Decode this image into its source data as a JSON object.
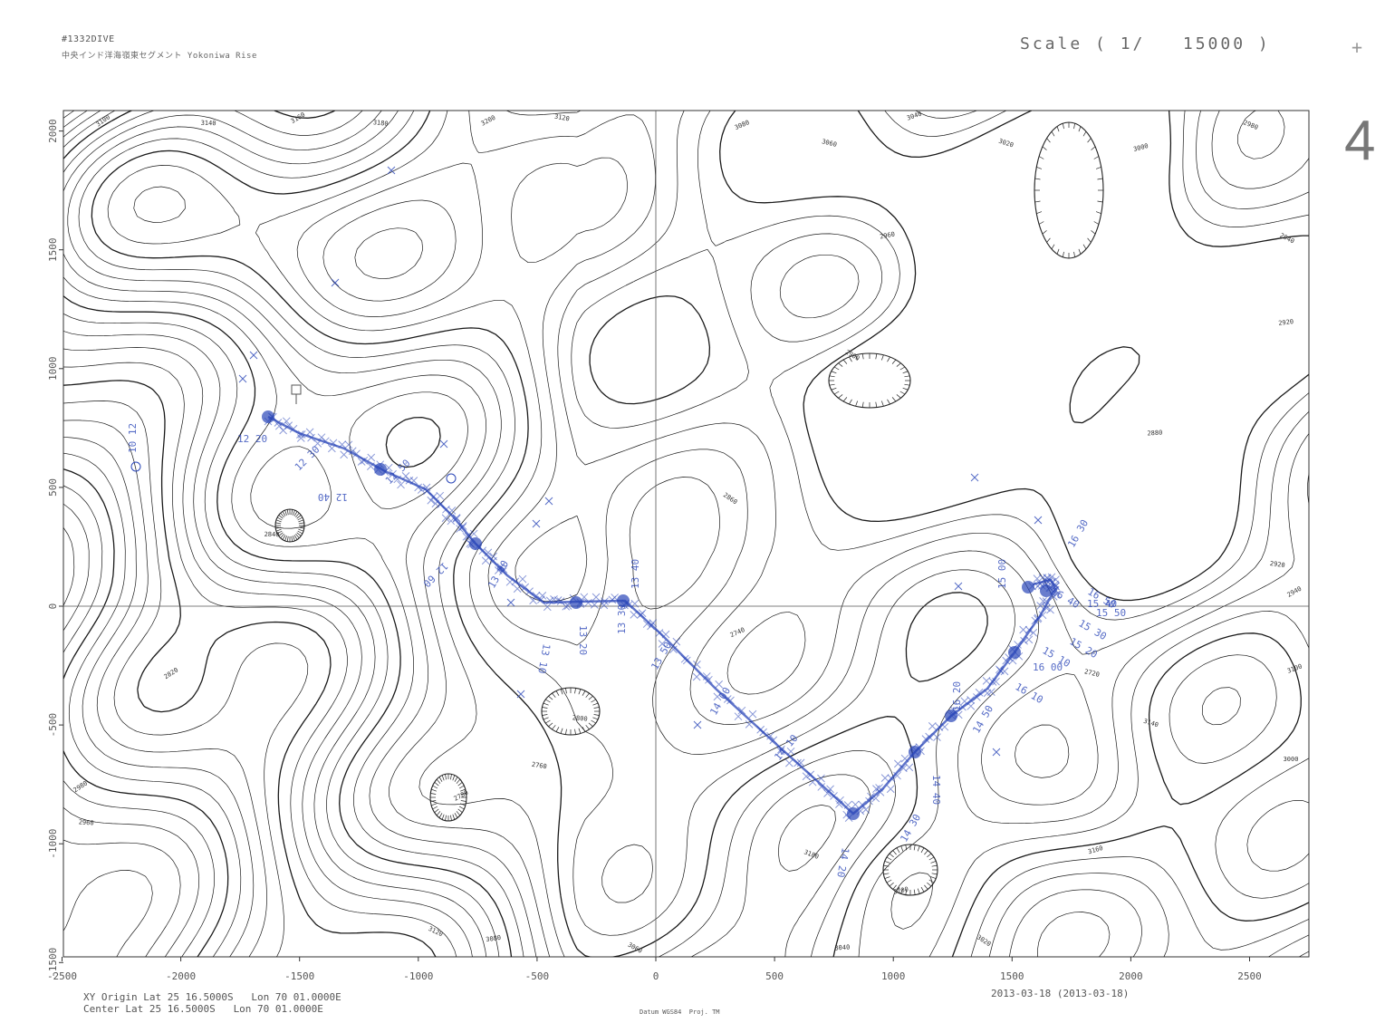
{
  "header": {
    "dive_id": "#1332DIVE",
    "subtitle": "中央インド洋海嶺東セグメント Yokoniwa Rise",
    "scale_label": "Scale ( 1/   15000 )",
    "page_number": "4",
    "corner_mark": "+"
  },
  "map": {
    "x_ticks": [
      "-2500",
      "-2000",
      "-1500",
      "-1000",
      "-500",
      "0",
      "500",
      "1000",
      "1500",
      "2000",
      "2500"
    ],
    "y_ticks": [
      "2000",
      "1500",
      "1000",
      "500",
      "0",
      "-500",
      "-1000",
      "-1500"
    ],
    "contour_labels": [
      "3100",
      "3140",
      "3160",
      "3180",
      "3200",
      "3120",
      "3080",
      "3060",
      "3040",
      "3020",
      "3000",
      "2980",
      "2960",
      "2940",
      "2920",
      "2900",
      "2880",
      "2860",
      "2840",
      "2820",
      "2800",
      "2780",
      "2760",
      "2740",
      "2720"
    ],
    "track_labels": [
      "10 12",
      "12 20",
      "12 30",
      "12 40",
      "12 50",
      "12 60",
      "13 00",
      "13 10",
      "13 20",
      "13 30",
      "13 40",
      "13 50",
      "14 00",
      "14 10",
      "14 20",
      "14 30",
      "14 40",
      "14 50",
      "15 00",
      "15 10",
      "15 20",
      "15 30",
      "15 40",
      "15 50",
      "16 00",
      "16 10",
      "16 20",
      "16 30",
      "16 40",
      "16 50"
    ],
    "track_color": "#2a46b8",
    "contour_color": "#1a1a1a"
  },
  "footer": {
    "xy_origin": "XY Origin Lat 25 16.5000S   Lon 70 01.0000E",
    "center": "Center Lat 25 16.5000S   Lon 70 01.0000E",
    "datum": "Datum WGS84  Proj. TM",
    "date": "2013-03-18 (2013-03-18)"
  }
}
